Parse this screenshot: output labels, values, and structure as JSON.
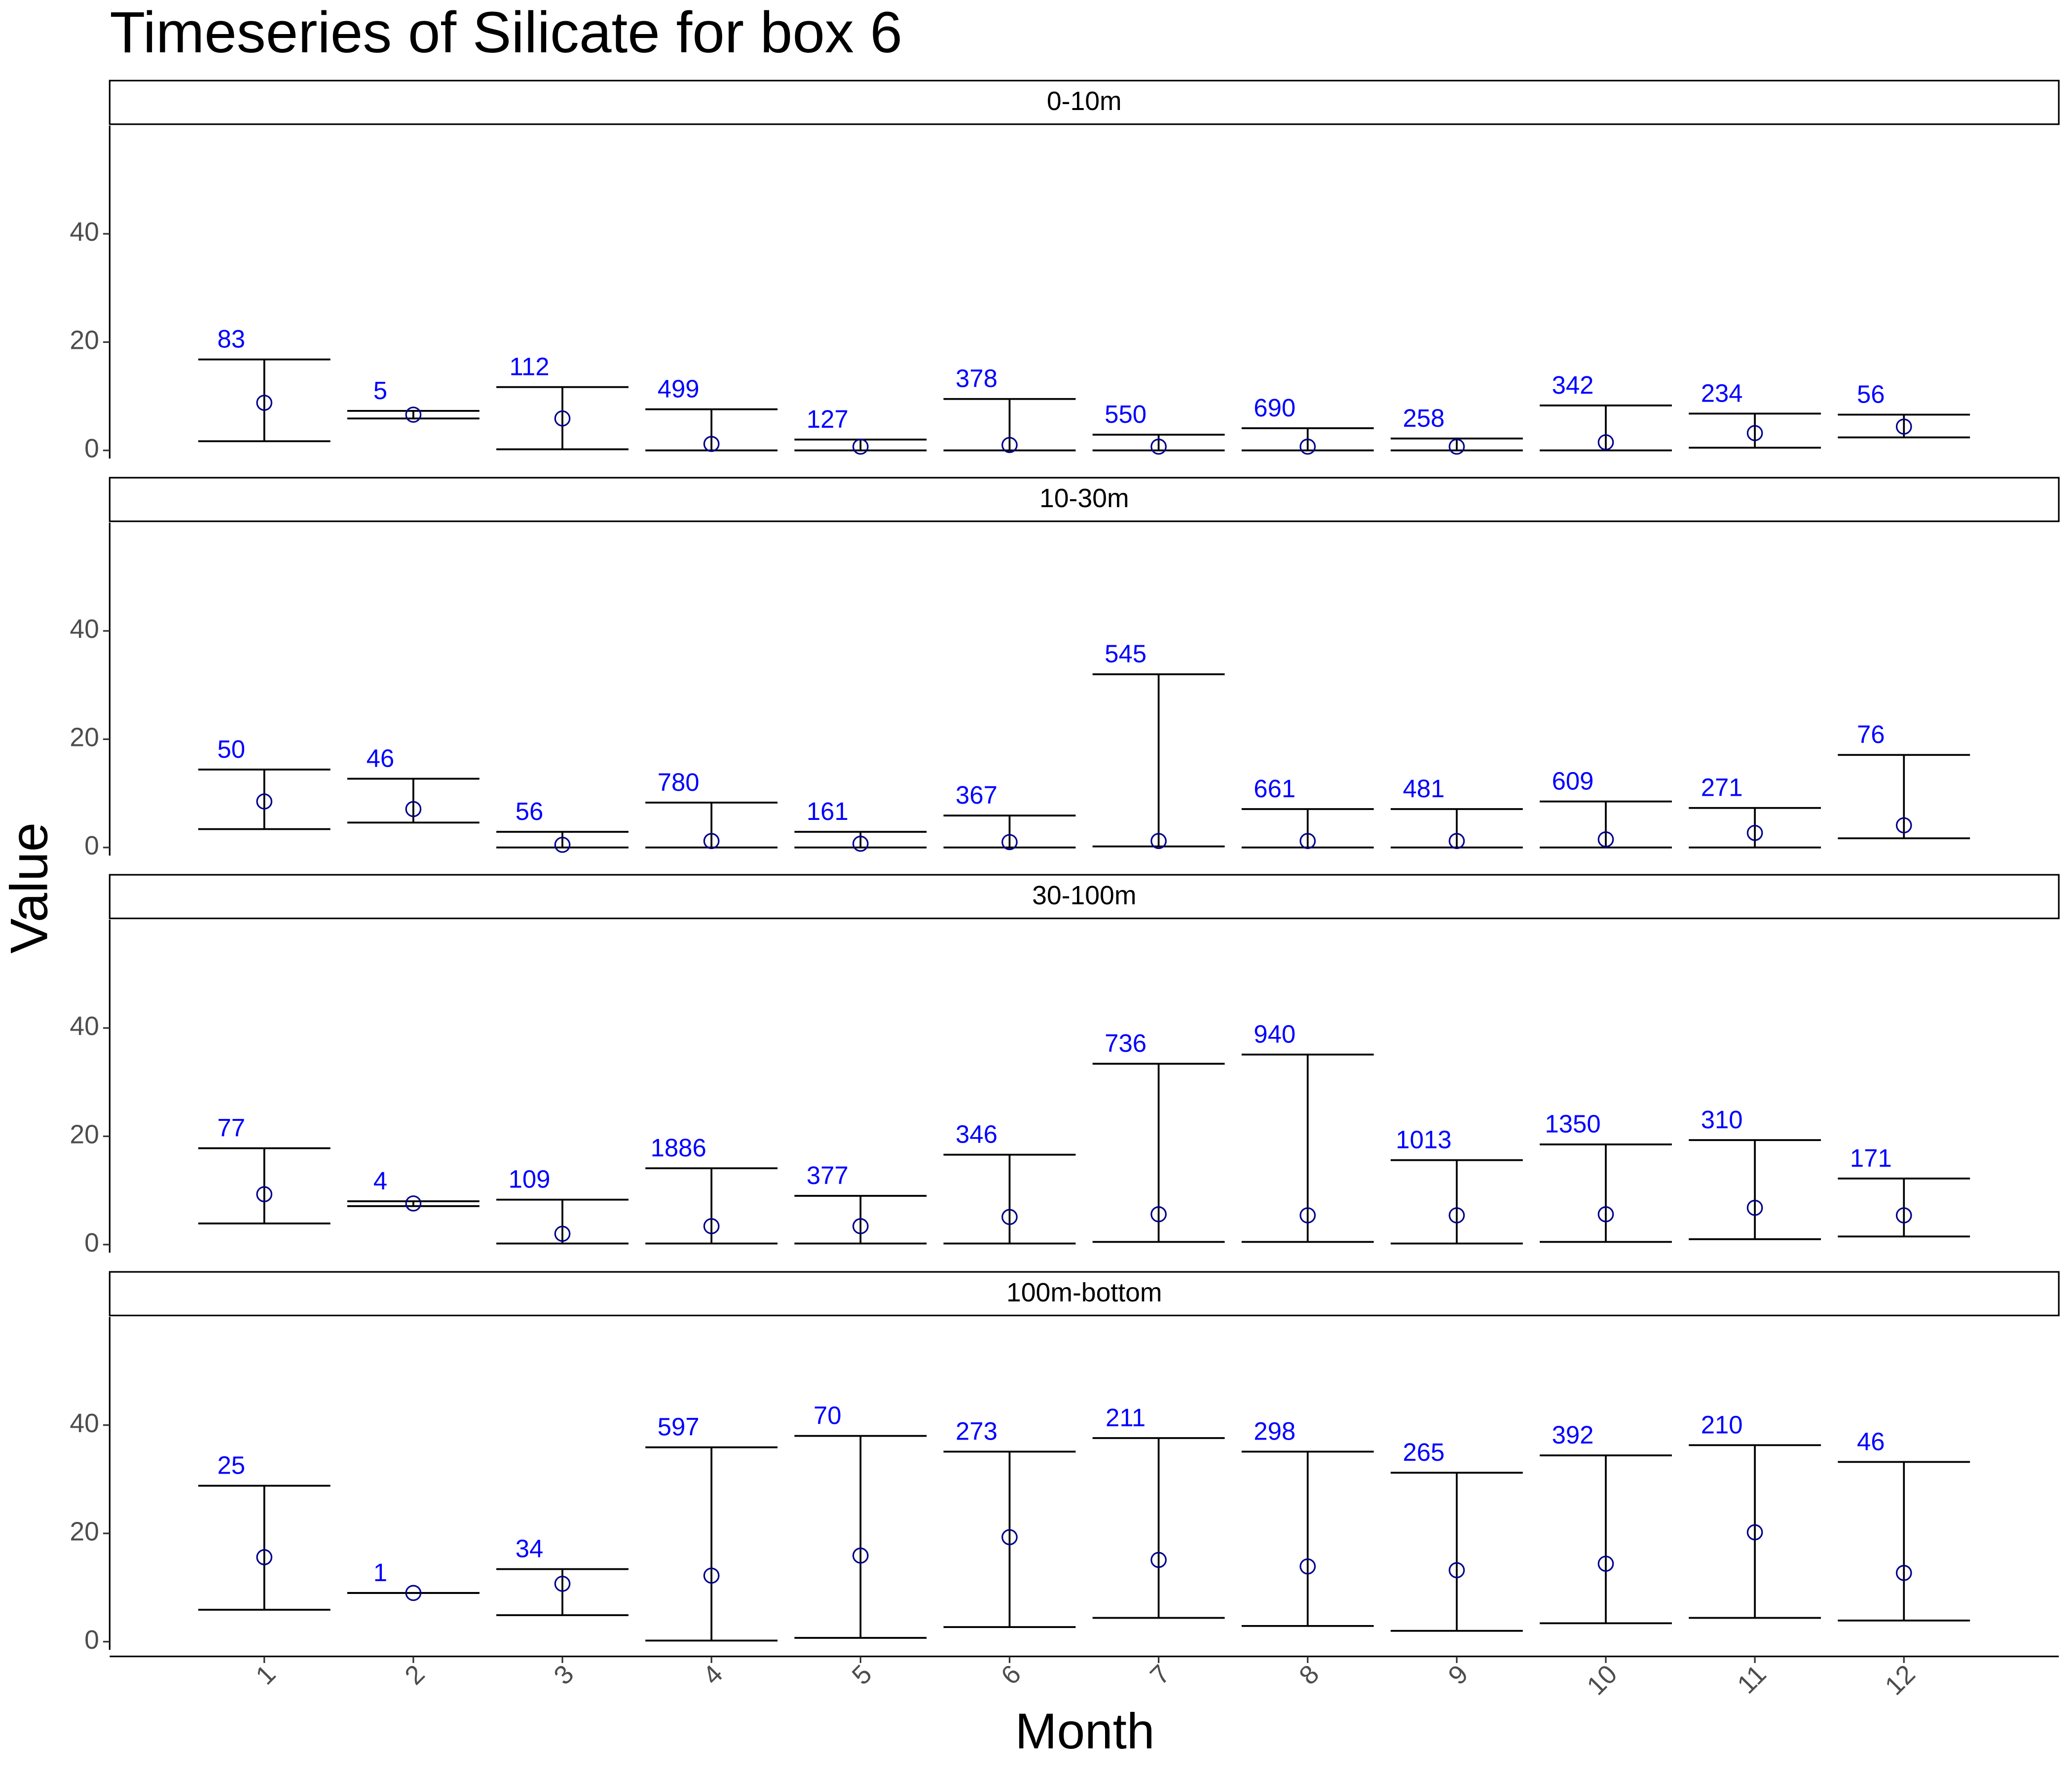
{
  "chart_data": {
    "type": "errorbar",
    "title": "Timeseries of  Silicate  for box  6",
    "x_label": "Month",
    "y_label": "Value",
    "categories": [
      "1",
      "2",
      "3",
      "4",
      "5",
      "6",
      "7",
      "8",
      "9",
      "10",
      "11",
      "12"
    ],
    "ylim": [
      -1.5,
      60
    ],
    "yticks": [
      0,
      20,
      40
    ],
    "point_color": "#00008b",
    "label_color": "#0000ff",
    "bar_color": "#000000",
    "panels": [
      {
        "name": "0-10m",
        "mean": [
          8.8,
          6.6,
          5.9,
          1.2,
          0.7,
          1.0,
          0.7,
          0.7,
          0.7,
          1.5,
          3.2,
          4.4
        ],
        "low": [
          1.7,
          5.9,
          0.2,
          0,
          0,
          0,
          0,
          0,
          0,
          0,
          0.5,
          2.4
        ],
        "high": [
          16.8,
          7.3,
          11.7,
          7.6,
          2.0,
          9.5,
          2.9,
          4.1,
          2.2,
          8.3,
          6.8,
          6.6
        ],
        "n": [
          83,
          5,
          112,
          499,
          127,
          378,
          550,
          690,
          258,
          342,
          234,
          56
        ]
      },
      {
        "name": "10-30m",
        "mean": [
          8.5,
          7.1,
          0.5,
          1.2,
          0.7,
          1.0,
          1.2,
          1.2,
          1.2,
          1.5,
          2.7,
          4.1
        ],
        "low": [
          3.4,
          4.6,
          0,
          0,
          0,
          0,
          0.2,
          0,
          0,
          0,
          0,
          1.7
        ],
        "high": [
          14.4,
          12.7,
          2.9,
          8.3,
          2.9,
          5.9,
          32.0,
          7.1,
          7.1,
          8.5,
          7.3,
          17.1
        ],
        "n": [
          50,
          46,
          56,
          780,
          161,
          367,
          545,
          661,
          481,
          609,
          271,
          76
        ]
      },
      {
        "name": "30-100m",
        "mean": [
          9.3,
          7.6,
          2.0,
          3.4,
          3.4,
          5.1,
          5.6,
          5.4,
          5.4,
          5.6,
          6.8,
          5.4
        ],
        "low": [
          3.9,
          7.1,
          0.2,
          0.2,
          0.2,
          0.2,
          0.5,
          0.5,
          0.2,
          0.5,
          1.0,
          1.5
        ],
        "high": [
          17.8,
          8.0,
          8.3,
          14.1,
          9.0,
          16.6,
          33.4,
          35.1,
          15.6,
          18.5,
          19.3,
          12.2
        ],
        "n": [
          77,
          4,
          109,
          1886,
          377,
          346,
          736,
          940,
          1013,
          1350,
          310,
          171
        ]
      },
      {
        "name": "100m-bottom",
        "mean": [
          15.6,
          9.0,
          10.7,
          12.2,
          15.9,
          19.3,
          15.1,
          13.9,
          13.2,
          14.4,
          20.2,
          12.7
        ],
        "low": [
          5.9,
          9.0,
          4.9,
          0.2,
          0.7,
          2.7,
          4.4,
          2.9,
          2.0,
          3.4,
          4.4,
          3.9
        ],
        "high": [
          28.8,
          9.0,
          13.4,
          35.9,
          38.0,
          35.1,
          37.6,
          35.1,
          31.2,
          34.4,
          36.3,
          33.2
        ],
        "n": [
          25,
          1,
          34,
          597,
          70,
          273,
          211,
          298,
          265,
          392,
          210,
          46
        ]
      }
    ]
  }
}
